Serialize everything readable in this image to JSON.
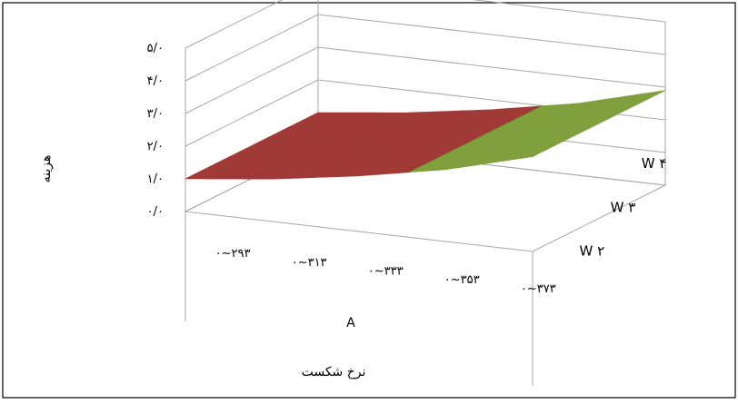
{
  "chart_data": {
    "type": "surface",
    "title": "",
    "xlabel": "نرخ شکست",
    "ylabel": "هزینه",
    "depth_axis_label": "A",
    "categories": [
      "۰~۲۹۳",
      "۰~۳۱۳",
      "۰~۳۳۳",
      "۰~۳۵۳",
      "۰~۳۷۳"
    ],
    "series_axis": [
      "W ۲",
      "W ۳",
      "W ۴"
    ],
    "y_ticks": [
      "۰/۰",
      "۱/۰",
      "۲/۰",
      "۳/۰",
      "۴/۰",
      "۵/۰"
    ],
    "ylim": [
      0,
      5
    ],
    "series": [
      {
        "values": [
          1.0,
          1.3,
          1.7,
          2.2,
          2.9
        ]
      },
      {
        "values": [
          1.0,
          1.3,
          1.7,
          2.2,
          2.9
        ]
      },
      {
        "values": [
          1.0,
          1.3,
          1.7,
          2.2,
          2.9
        ]
      }
    ],
    "bands": [
      {
        "range": [
          1,
          2
        ],
        "color": "#a03a36"
      },
      {
        "range": [
          2,
          3
        ],
        "color": "#7fa03c"
      },
      {
        "range": [
          3,
          4
        ],
        "color": "#5a4785"
      }
    ],
    "grid": true,
    "legend": "none"
  }
}
